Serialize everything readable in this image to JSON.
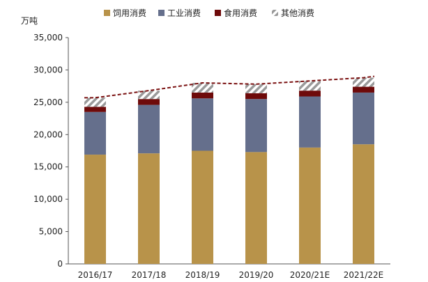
{
  "chart_data": {
    "type": "bar",
    "stacked": true,
    "title": "",
    "unit_label": "万吨",
    "categories": [
      "2016/17",
      "2017/18",
      "2018/19",
      "2019/20",
      "2020/21E",
      "2021/22E"
    ],
    "ylim": [
      0,
      35000
    ],
    "yticks": [
      0,
      5000,
      10000,
      15000,
      20000,
      25000,
      30000,
      35000
    ],
    "ytick_labels": [
      "0",
      "5,000",
      "10,000",
      "15,000",
      "20,000",
      "25,000",
      "30,000",
      "35,000"
    ],
    "grid": false,
    "legend_position": "top",
    "series": [
      {
        "name": "饲用消费",
        "color": "#b8934a",
        "values": [
          16900,
          17100,
          17500,
          17300,
          18000,
          18500
        ]
      },
      {
        "name": "工业消费",
        "color": "#656f8c",
        "values": [
          6600,
          7500,
          8100,
          8200,
          7900,
          8000
        ]
      },
      {
        "name": "食用消费",
        "color": "#6e0a0a",
        "values": [
          800,
          900,
          900,
          900,
          900,
          900
        ]
      },
      {
        "name": "其他消费",
        "color": "#9a9a9a",
        "pattern": "hatch",
        "values": [
          1400,
          1300,
          1500,
          1400,
          1500,
          1400
        ]
      }
    ],
    "total_line": {
      "style": "dashed",
      "color": "#7a1010",
      "values": [
        25700,
        26800,
        28000,
        27800,
        28300,
        28800
      ]
    }
  }
}
